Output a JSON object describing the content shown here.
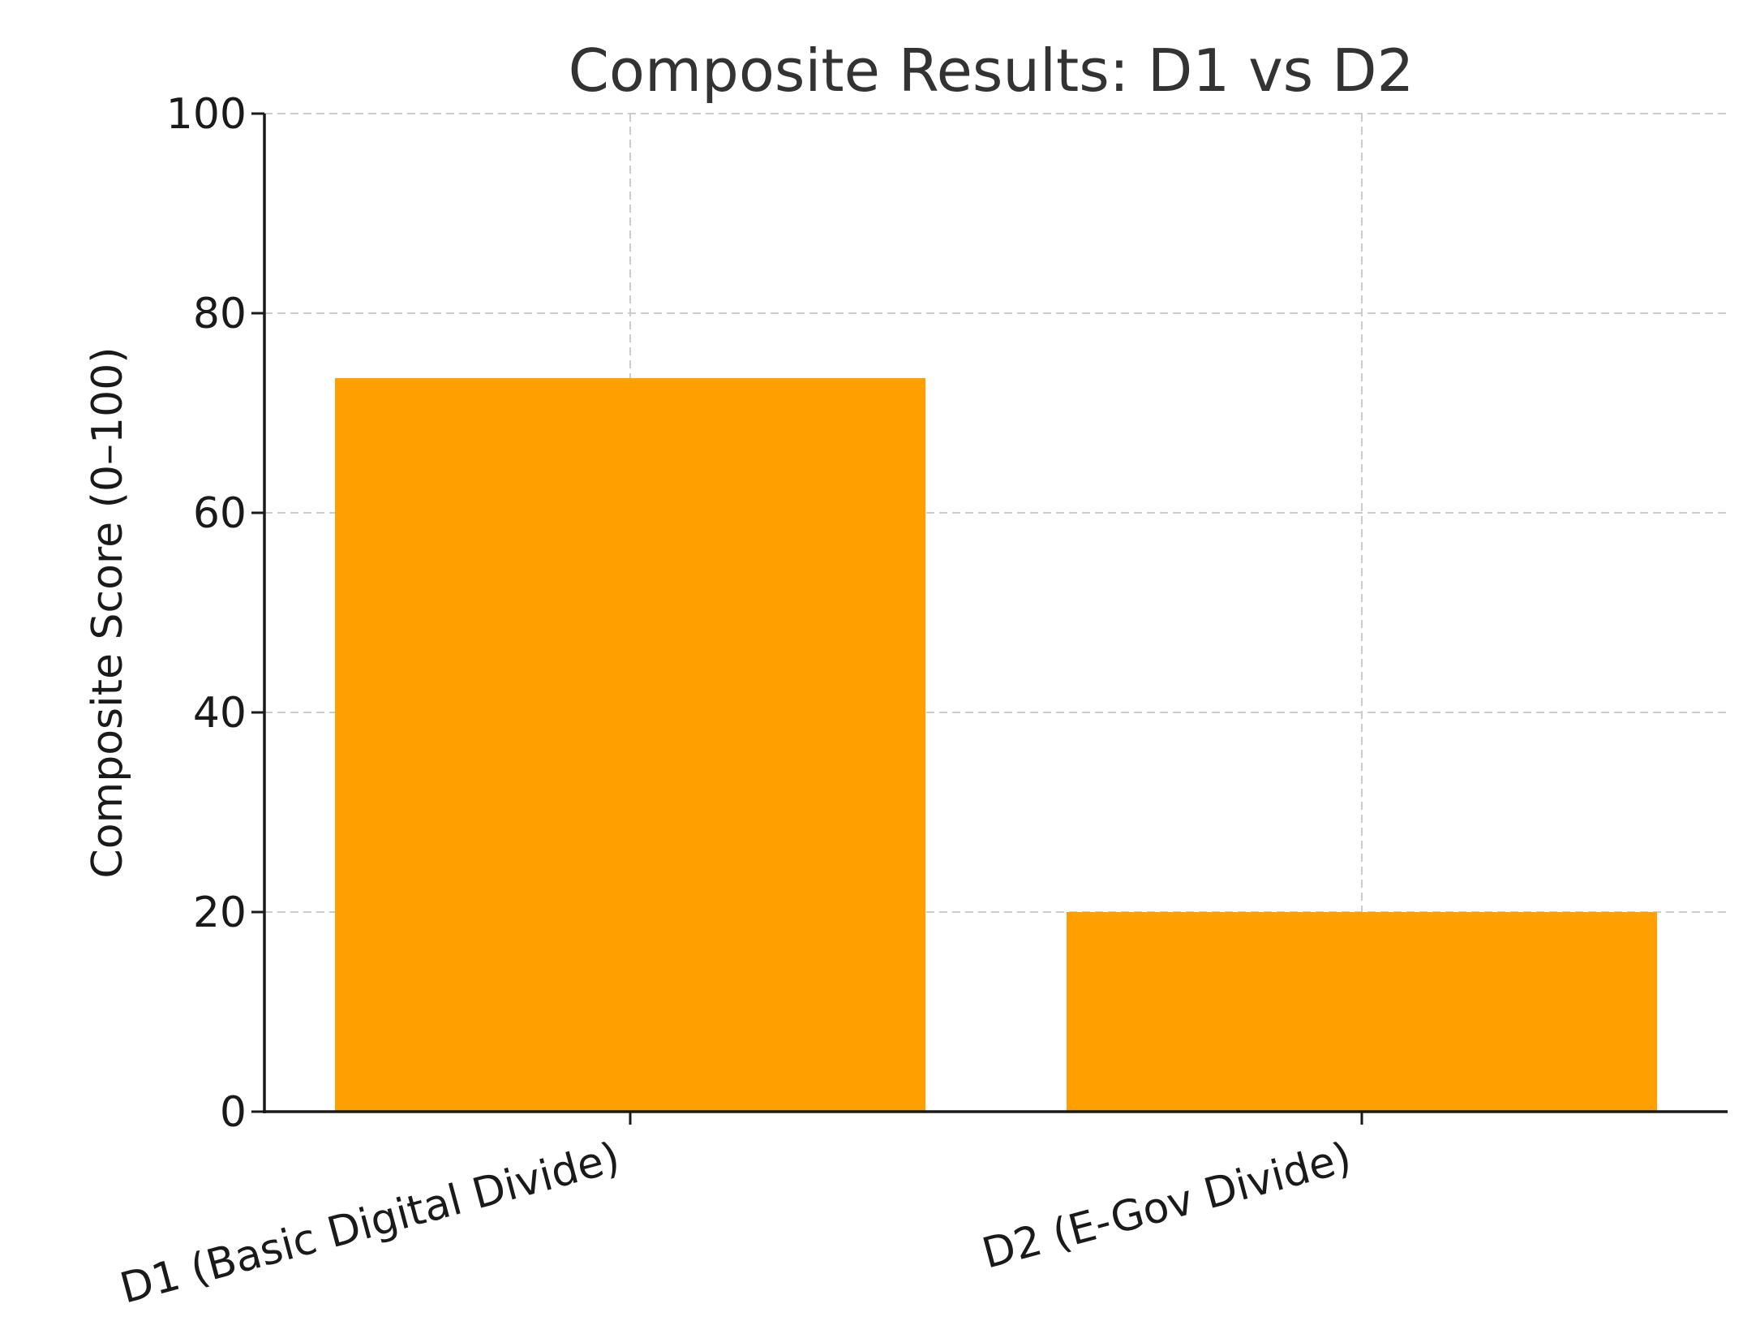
{
  "chart_data": {
    "type": "bar",
    "title": "Composite Results: D1 vs D2",
    "ylabel": "Composite Score (0–100)",
    "xlabel": "",
    "categories": [
      "D1 (Basic Digital Divide)",
      "D2 (E-Gov Divide)"
    ],
    "values": [
      73.5,
      20.0
    ],
    "ylim": [
      0,
      100
    ],
    "yticks": [
      0,
      20,
      40,
      60,
      80,
      100
    ],
    "grid": true,
    "bar_color": "#FFA000"
  }
}
